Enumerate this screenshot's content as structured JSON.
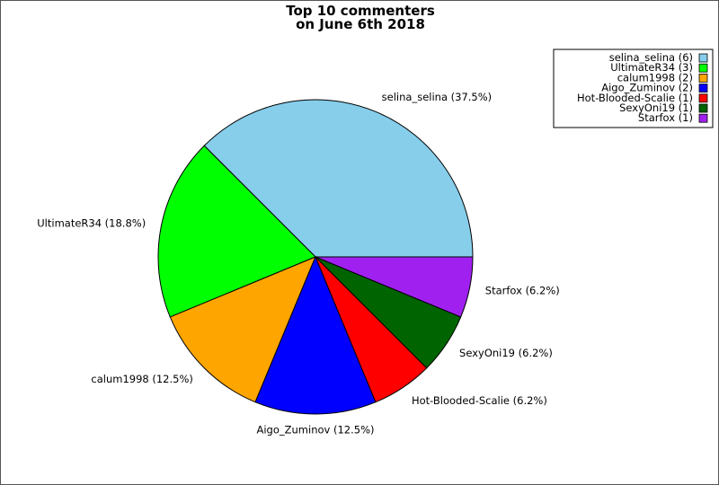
{
  "chart_data": {
    "type": "pie",
    "title": [
      "Top 10 commenters",
      "on June 6th 2018"
    ],
    "start_angle_deg": 0,
    "direction": "counterclockwise",
    "legend_position": "top-right",
    "slices": [
      {
        "name": "selina_selina",
        "value": 6,
        "label": "selina_selina (37.5%)",
        "legend": "selina_selina (6)",
        "color": "#87ceeb"
      },
      {
        "name": "UltimateR34",
        "value": 3,
        "label": "UltimateR34 (18.8%)",
        "legend": "UltimateR34 (3)",
        "color": "#00ff00"
      },
      {
        "name": "calum1998",
        "value": 2,
        "label": "calum1998 (12.5%)",
        "legend": "calum1998 (2)",
        "color": "#ffa500"
      },
      {
        "name": "Aigo_Zuminov",
        "value": 2,
        "label": "Aigo_Zuminov (12.5%)",
        "legend": "Aigo_Zuminov (2)",
        "color": "#0000ff"
      },
      {
        "name": "Hot-Blooded-Scalie",
        "value": 1,
        "label": "Hot-Blooded-Scalie (6.2%)",
        "legend": "Hot-Blooded-Scalie (1)",
        "color": "#ff0000"
      },
      {
        "name": "SexyOni19",
        "value": 1,
        "label": "SexyOni19 (6.2%)",
        "legend": "SexyOni19 (1)",
        "color": "#006400"
      },
      {
        "name": "Starfox",
        "value": 1,
        "label": "Starfox (6.2%)",
        "legend": "Starfox (1)",
        "color": "#a020f0"
      }
    ]
  }
}
